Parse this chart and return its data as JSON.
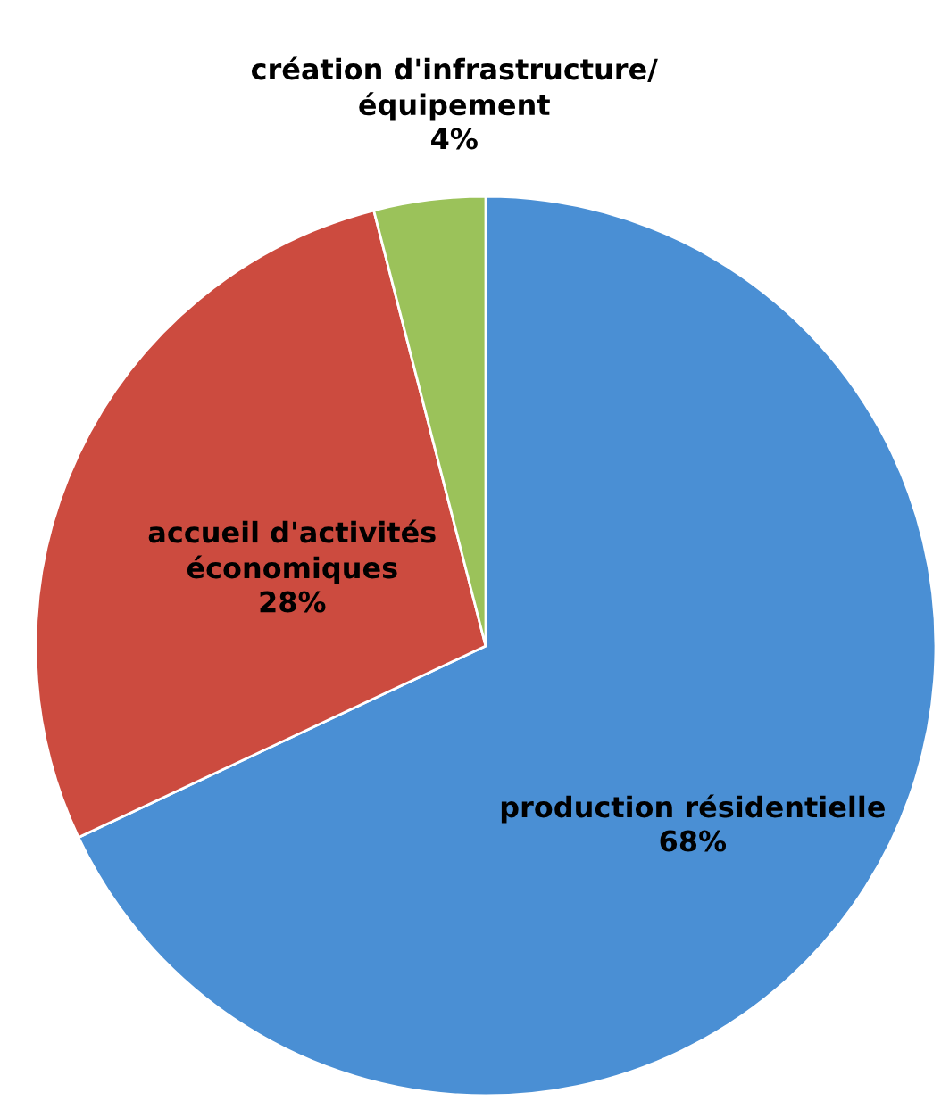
{
  "chart_data": {
    "type": "pie",
    "categories": [
      "production résidentielle",
      "accueil d'activités\néconomiques",
      "création d'infrastructure/\néquipement"
    ],
    "values": [
      68,
      28,
      4
    ],
    "value_labels": [
      "68%",
      "28%",
      "4%"
    ],
    "colors": [
      "#4a8fd4",
      "#cc4b3f",
      "#9bc25a"
    ],
    "legend": false
  }
}
